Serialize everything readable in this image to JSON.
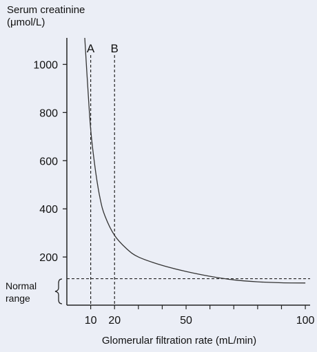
{
  "chart_data": {
    "type": "line",
    "ylabel": [
      "Serum creatinine",
      "(μmol/L)"
    ],
    "xlabel": "Glomerular filtration rate (mL/min)",
    "xlim": [
      0,
      102
    ],
    "ylim": [
      0,
      1110
    ],
    "x_ticks": [
      10,
      20,
      50,
      100
    ],
    "y_ticks": [
      200,
      400,
      600,
      800,
      1000
    ],
    "x_minor_ticks": [
      10,
      20,
      30,
      40,
      50,
      60,
      70,
      80,
      90,
      100
    ],
    "series": [
      {
        "points": [
          [
            7.5,
            1110
          ],
          [
            8.5,
            950
          ],
          [
            10,
            730
          ],
          [
            12,
            560
          ],
          [
            14,
            440
          ],
          [
            16,
            370
          ],
          [
            20,
            290
          ],
          [
            25,
            235
          ],
          [
            30,
            200
          ],
          [
            40,
            165
          ],
          [
            50,
            140
          ],
          [
            60,
            120
          ],
          [
            70,
            105
          ],
          [
            80,
            97
          ],
          [
            90,
            93
          ],
          [
            100,
            92
          ]
        ]
      }
    ],
    "reference_lines": {
      "vertical": [
        {
          "x": 10,
          "label": "A"
        },
        {
          "x": 20,
          "label": "B"
        }
      ],
      "horizontal": [
        {
          "y": 110
        }
      ]
    },
    "normal_range": {
      "label_lines": [
        "Normal",
        "range"
      ]
    },
    "colors": {
      "line": "#333333",
      "axis": "#222222",
      "background": "#ebeef6"
    }
  }
}
